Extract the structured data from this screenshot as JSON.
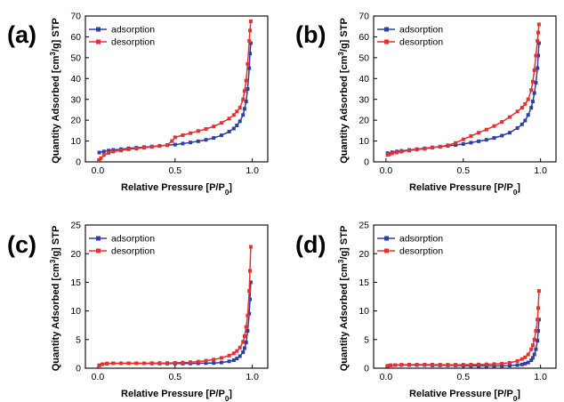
{
  "figure": {
    "legend_position": "top-left",
    "colors": {
      "adsorption": "#2f3fa6",
      "desorption": "#e8302c"
    }
  },
  "chart_data": [
    {
      "panel": "(a)",
      "type": "line",
      "xlabel": "Relative Pressure [P/P0]",
      "ylabel": "Quantity Adsorbed [cm3/g] STP",
      "xlim": [
        -0.08,
        1.1
      ],
      "ylim": [
        0,
        70
      ],
      "xticks": [
        "0.0",
        "0.5",
        "1.0"
      ],
      "yticks": [
        "0",
        "10",
        "20",
        "30",
        "40",
        "50",
        "60",
        "70"
      ],
      "series": [
        {
          "name": "adsorption",
          "x": [
            0.01,
            0.04,
            0.07,
            0.1,
            0.15,
            0.2,
            0.25,
            0.3,
            0.35,
            0.4,
            0.45,
            0.5,
            0.55,
            0.6,
            0.65,
            0.7,
            0.75,
            0.8,
            0.85,
            0.88,
            0.9,
            0.92,
            0.94,
            0.95,
            0.96,
            0.97,
            0.98,
            0.985,
            0.99
          ],
          "y": [
            4.5,
            5.0,
            5.4,
            5.7,
            6.1,
            6.5,
            6.8,
            7.1,
            7.4,
            7.7,
            8.0,
            8.3,
            8.8,
            9.3,
            9.9,
            10.6,
            11.5,
            12.7,
            14.5,
            16.0,
            17.5,
            19.5,
            22.5,
            25.5,
            29,
            35,
            45,
            52,
            57
          ]
        },
        {
          "name": "desorption",
          "x": [
            0.99,
            0.985,
            0.98,
            0.97,
            0.96,
            0.95,
            0.94,
            0.92,
            0.9,
            0.88,
            0.85,
            0.8,
            0.75,
            0.7,
            0.65,
            0.6,
            0.55,
            0.5,
            0.48,
            0.45,
            0.4,
            0.35,
            0.3,
            0.25,
            0.2,
            0.15,
            0.1,
            0.07,
            0.04,
            0.02,
            0.01
          ],
          "y": [
            67.5,
            63,
            58,
            47,
            39,
            34,
            30,
            26,
            24.2,
            22.5,
            20.8,
            18.7,
            17.0,
            15.8,
            14.8,
            13.8,
            12.8,
            11.8,
            10,
            8.1,
            7.6,
            7.2,
            6.8,
            6.4,
            6.0,
            5.5,
            4.9,
            4.3,
            3.3,
            1.8,
            0.9
          ]
        }
      ]
    },
    {
      "panel": "(b)",
      "type": "line",
      "xlabel": "Relative Pressure [P/P0]",
      "ylabel": "Quantity Adsorbed [cm3/g] STP",
      "xlim": [
        -0.08,
        1.1
      ],
      "ylim": [
        0,
        70
      ],
      "xticks": [
        "0.0",
        "0.5",
        "1.0"
      ],
      "yticks": [
        "0",
        "10",
        "20",
        "30",
        "40",
        "50",
        "60",
        "70"
      ],
      "series": [
        {
          "name": "adsorption",
          "x": [
            0.01,
            0.04,
            0.07,
            0.1,
            0.15,
            0.2,
            0.25,
            0.3,
            0.35,
            0.4,
            0.45,
            0.5,
            0.55,
            0.6,
            0.65,
            0.7,
            0.75,
            0.8,
            0.85,
            0.88,
            0.9,
            0.92,
            0.94,
            0.95,
            0.96,
            0.97,
            0.98,
            0.985,
            0.99
          ],
          "y": [
            4.2,
            4.6,
            5.0,
            5.3,
            5.7,
            6.1,
            6.5,
            6.9,
            7.3,
            7.7,
            8.1,
            8.6,
            9.2,
            9.9,
            10.6,
            11.5,
            12.6,
            14,
            16.2,
            18,
            19.8,
            22.5,
            26,
            29,
            33,
            38,
            45,
            51,
            57
          ]
        },
        {
          "name": "desorption",
          "x": [
            0.99,
            0.985,
            0.98,
            0.97,
            0.96,
            0.95,
            0.94,
            0.92,
            0.9,
            0.88,
            0.85,
            0.8,
            0.75,
            0.7,
            0.65,
            0.6,
            0.55,
            0.5,
            0.45,
            0.4,
            0.35,
            0.3,
            0.25,
            0.2,
            0.15,
            0.1,
            0.07,
            0.04,
            0.02,
            0.01
          ],
          "y": [
            66,
            62,
            58,
            51,
            44,
            38.5,
            34.5,
            30,
            27.8,
            26,
            24.2,
            21.5,
            19.2,
            17.2,
            15.5,
            14,
            12.4,
            10.8,
            9.1,
            8.0,
            7.3,
            6.8,
            6.3,
            5.9,
            5.4,
            4.9,
            4.5,
            4.1,
            3.6,
            3.3
          ]
        }
      ]
    },
    {
      "panel": "(c)",
      "type": "line",
      "xlabel": "Relative Pressure [P/P0]",
      "ylabel": "Quantity Adsorbed [cm3/g] STP",
      "xlim": [
        -0.08,
        1.1
      ],
      "ylim": [
        0,
        25
      ],
      "xticks": [
        "0.0",
        "0.5",
        "1.0"
      ],
      "yticks": [
        "0",
        "5",
        "10",
        "15",
        "20",
        "25"
      ],
      "series": [
        {
          "name": "adsorption",
          "x": [
            0.01,
            0.03,
            0.06,
            0.1,
            0.15,
            0.2,
            0.25,
            0.3,
            0.35,
            0.4,
            0.45,
            0.5,
            0.55,
            0.6,
            0.65,
            0.7,
            0.75,
            0.8,
            0.85,
            0.88,
            0.9,
            0.92,
            0.94,
            0.95,
            0.96,
            0.97,
            0.98,
            0.985,
            0.99
          ],
          "y": [
            0.5,
            0.7,
            0.8,
            0.85,
            0.85,
            0.85,
            0.85,
            0.85,
            0.82,
            0.8,
            0.8,
            0.8,
            0.8,
            0.82,
            0.85,
            0.88,
            0.9,
            1.0,
            1.2,
            1.4,
            1.7,
            2.1,
            2.8,
            3.5,
            4.5,
            6.5,
            9.5,
            12,
            15
          ]
        },
        {
          "name": "desorption",
          "x": [
            0.99,
            0.985,
            0.98,
            0.97,
            0.96,
            0.95,
            0.94,
            0.92,
            0.9,
            0.88,
            0.85,
            0.8,
            0.75,
            0.7,
            0.65,
            0.6,
            0.55,
            0.5,
            0.45,
            0.4,
            0.35,
            0.3,
            0.25,
            0.2,
            0.15,
            0.1,
            0.06,
            0.03,
            0.01
          ],
          "y": [
            21.2,
            17,
            13.5,
            9.2,
            7.2,
            5.6,
            4.6,
            3.6,
            3.0,
            2.6,
            2.2,
            1.8,
            1.5,
            1.3,
            1.15,
            1.05,
            1.0,
            0.95,
            0.9,
            0.9,
            0.88,
            0.86,
            0.85,
            0.85,
            0.85,
            0.85,
            0.8,
            0.7,
            0.5
          ]
        }
      ]
    },
    {
      "panel": "(d)",
      "type": "line",
      "xlabel": "Relative Pressure [P/P0]",
      "ylabel": "Quantity Adsorbed [cm3/g] STP",
      "xlim": [
        -0.08,
        1.1
      ],
      "ylim": [
        0,
        25
      ],
      "xticks": [
        "0.0",
        "0.5",
        "1.0"
      ],
      "yticks": [
        "0",
        "5",
        "10",
        "15",
        "20",
        "25"
      ],
      "series": [
        {
          "name": "adsorption",
          "x": [
            0.01,
            0.03,
            0.06,
            0.1,
            0.15,
            0.2,
            0.25,
            0.3,
            0.35,
            0.4,
            0.45,
            0.5,
            0.55,
            0.6,
            0.65,
            0.7,
            0.75,
            0.8,
            0.85,
            0.88,
            0.9,
            0.92,
            0.94,
            0.95,
            0.96,
            0.97,
            0.98,
            0.985,
            0.99
          ],
          "y": [
            0.4,
            0.5,
            0.55,
            0.55,
            0.55,
            0.55,
            0.55,
            0.5,
            0.5,
            0.5,
            0.48,
            0.45,
            0.42,
            0.4,
            0.4,
            0.4,
            0.42,
            0.45,
            0.55,
            0.65,
            0.8,
            1.0,
            1.4,
            1.8,
            2.4,
            3.3,
            4.8,
            6.5,
            8.5
          ]
        },
        {
          "name": "desorption",
          "x": [
            0.99,
            0.985,
            0.98,
            0.97,
            0.96,
            0.95,
            0.94,
            0.92,
            0.9,
            0.88,
            0.85,
            0.8,
            0.75,
            0.7,
            0.65,
            0.6,
            0.55,
            0.5,
            0.45,
            0.4,
            0.35,
            0.3,
            0.25,
            0.2,
            0.15,
            0.1,
            0.06,
            0.03,
            0.01
          ],
          "y": [
            13.5,
            10.5,
            8.5,
            6.5,
            5.0,
            4.0,
            3.3,
            2.4,
            1.9,
            1.6,
            1.25,
            0.95,
            0.8,
            0.72,
            0.68,
            0.65,
            0.62,
            0.6,
            0.6,
            0.6,
            0.6,
            0.62,
            0.62,
            0.62,
            0.62,
            0.6,
            0.55,
            0.5,
            0.4
          ]
        }
      ]
    }
  ]
}
